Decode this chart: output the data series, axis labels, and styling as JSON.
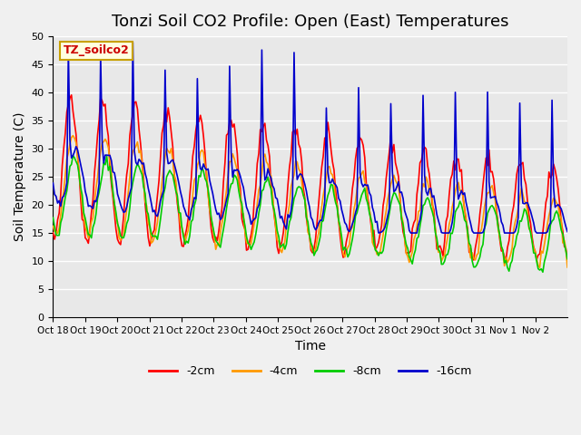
{
  "title": "Tonzi Soil CO2 Profile: Open (East) Temperatures",
  "xlabel": "Time",
  "ylabel": "Soil Temperature (C)",
  "ylim": [
    0,
    50
  ],
  "yticks": [
    0,
    5,
    10,
    15,
    20,
    25,
    30,
    35,
    40,
    45,
    50
  ],
  "xtick_labels": [
    "Oct 18",
    "Oct 19",
    "Oct 20",
    "Oct 21",
    "Oct 22",
    "Oct 23",
    "Oct 24",
    "Oct 25",
    "Oct 26",
    "Oct 27",
    "Oct 28",
    "Oct 29",
    "Oct 30",
    "Oct 31",
    "Nov 1",
    "Nov 2"
  ],
  "legend_label": "TZ_soilco2",
  "legend_box_color": "#ffffe0",
  "legend_box_edge_color": "#c8a000",
  "legend_text_color": "#cc0000",
  "series_labels": [
    "-2cm",
    "-4cm",
    "-8cm",
    "-16cm"
  ],
  "series_colors": [
    "#ff0000",
    "#ff9900",
    "#00cc00",
    "#0000cc"
  ],
  "fig_bg_color": "#f0f0f0",
  "plot_bg_color": "#e8e8e8",
  "grid_color": "#ffffff",
  "title_fontsize": 13,
  "days": 16
}
